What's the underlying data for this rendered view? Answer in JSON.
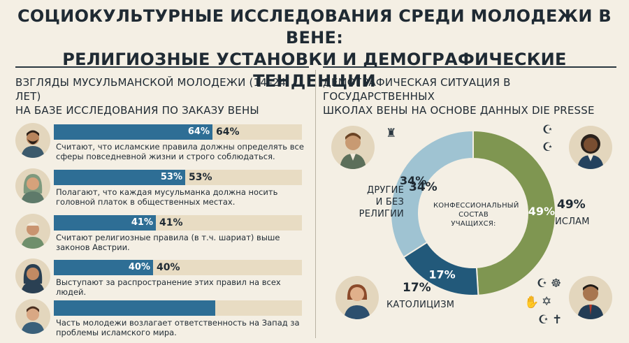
{
  "title": {
    "line1": "СОЦИОКУЛЬТУРНЫЕ ИССЛЕДОВАНИЯ СРЕДИ МОЛОДЕЖИ В ВЕНЕ:",
    "line2": "РЕЛИГИОЗНЫЕ УСТАНОВКИ И ДЕМОГРАФИЧЕСКИЕ ТЕНДЕНЦИИ"
  },
  "left_section": {
    "heading": "ВЗГЛЯДЫ МУСУЛЬМАНСКОЙ МОЛОДЕЖИ (14–24 ЛЕТ)\nНА БАЗЕ ИССЛЕДОВАНИЯ ПО ЗАКАЗУ ВЕНЫ"
  },
  "right_section": {
    "heading": "ДЕМОГРАФИЧЕСКАЯ СИТУАЦИЯ В ГОСУДАРСТВЕННЫХ\nШКОЛАХ ВЕНЫ НА ОСНОВЕ ДАННЫХ DIE PRESSE",
    "center_label": "КОНФЕССИОНАЛЬНЫЙ\nСОСТАВ\nУЧАЩИХСЯ:"
  },
  "chart_data": [
    {
      "type": "bar",
      "orientation": "horizontal",
      "xlim": [
        0,
        100
      ],
      "categories": [
        "Считают, что исламские правила должны определять все сферы повседневной жизни и строго соблюдаться.",
        "Полагают, что каждая мусульманка должна носить головной платок в общественных местах.",
        "Считают религиозные правила (в т.ч. шариат) выше законов Австрии.",
        "Выступают за распространение этих правил на всех людей.",
        "Часть молодежи возлагает ответственность на Запад за проблемы исламского мира."
      ],
      "values": [
        64,
        53,
        41,
        40,
        65
      ],
      "labels": [
        "64%",
        "53%",
        "41%",
        "40%",
        ""
      ],
      "colors": {
        "fill": "#2e6e95",
        "track": "#e8dcc3"
      }
    },
    {
      "type": "pie",
      "donut": true,
      "slices": [
        {
          "label": "ИСЛАМ",
          "value": 49,
          "value_label": "49%",
          "color": "#7f9651"
        },
        {
          "label": "КАТОЛИЦИЗМ",
          "value": 17,
          "value_label": "17%",
          "color": "#22597a"
        },
        {
          "label": "ДРУГИЕ\nИ БЕЗ РЕЛИГИИ",
          "value": 34,
          "value_label": "34%",
          "color": "#9fc3d2"
        }
      ],
      "outer_value_labels": {
        "islam": "49%",
        "catholic": "17%",
        "other": "34%"
      }
    }
  ],
  "icons": {
    "left_avatars": [
      "bearded-man-icon",
      "hijab-woman-icon",
      "cap-man-icon",
      "hijab-woman-icon",
      "young-man-icon"
    ],
    "right_people": [
      "student-boy-icon",
      "student-girl-icon",
      "school-girl-icon",
      "school-boy-icon"
    ],
    "symbols": [
      "tower-icon",
      "crescent-star-icon",
      "om-icon",
      "star-of-david-icon",
      "hamsa-icon",
      "cross-icon"
    ]
  }
}
